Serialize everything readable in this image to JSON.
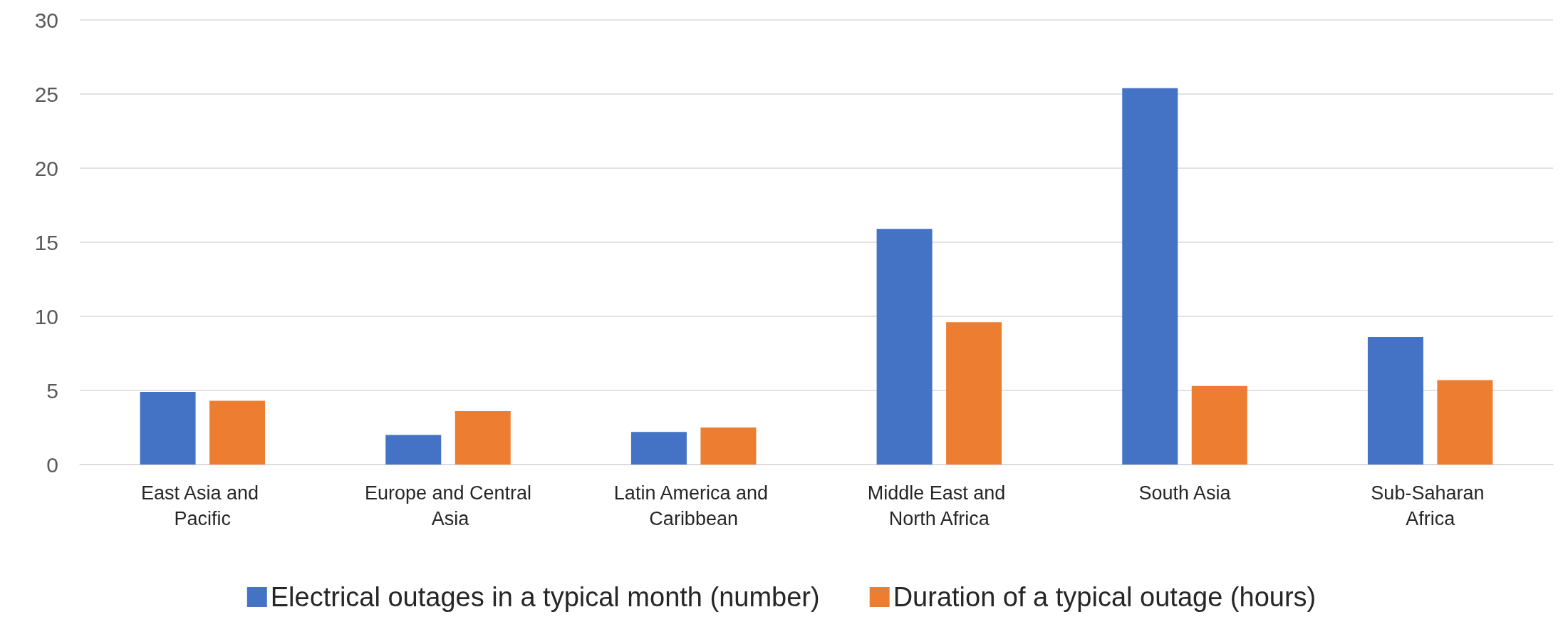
{
  "chart_data": {
    "type": "bar",
    "categories": [
      "East Asia and Pacific",
      "Europe and Central Asia",
      "Latin America and Caribbean",
      "Middle East and North Africa",
      "South Asia",
      "Sub-Saharan Africa"
    ],
    "series": [
      {
        "name": "Electrical outages in a typical month (number)",
        "color": "#4472c4",
        "values": [
          4.9,
          2.0,
          2.2,
          15.9,
          25.4,
          8.6
        ]
      },
      {
        "name": "Duration of a typical outage (hours)",
        "color": "#ed7d31",
        "values": [
          4.3,
          3.6,
          2.5,
          9.6,
          5.3,
          5.7
        ]
      }
    ],
    "ylim": [
      0,
      30
    ],
    "yticks": [
      0,
      5,
      10,
      15,
      20,
      25,
      30
    ],
    "grid": "y",
    "legend": "bottom"
  }
}
